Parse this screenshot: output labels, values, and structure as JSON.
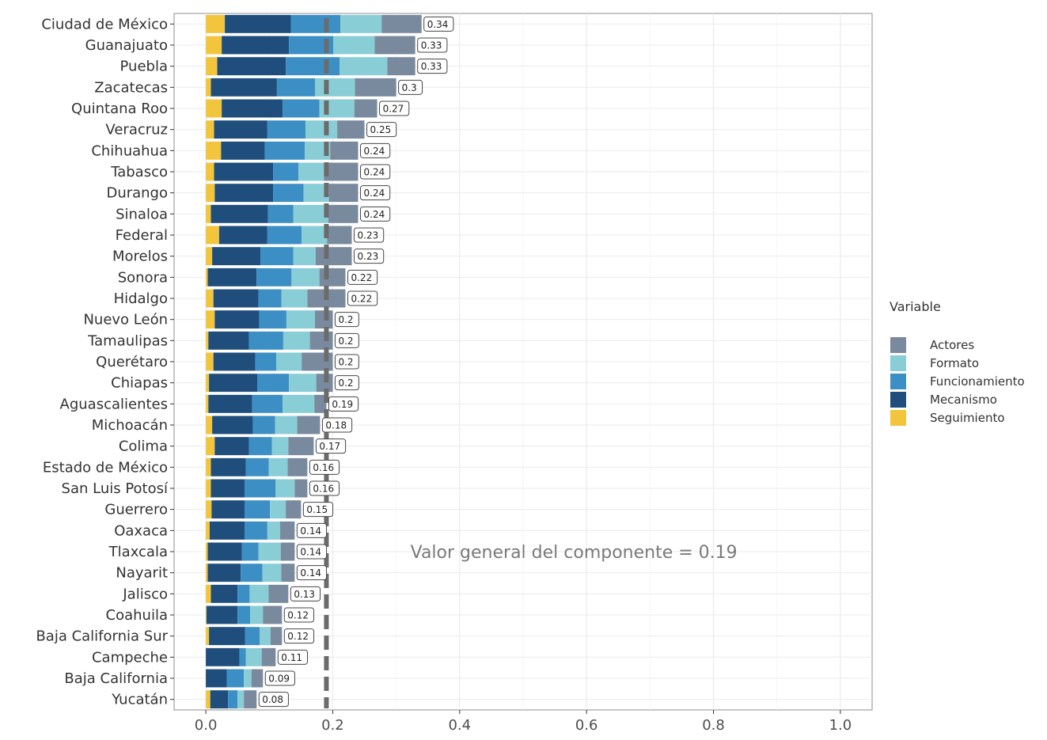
{
  "chart_data": {
    "type": "bar",
    "orientation": "horizontal",
    "stacked": true,
    "categories": [
      "Ciudad de México",
      "Guanajuato",
      "Puebla",
      "Zacatecas",
      "Quintana Roo",
      "Veracruz",
      "Chihuahua",
      "Tabasco",
      "Durango",
      "Sinaloa",
      "Federal",
      "Morelos",
      "Sonora",
      "Hidalgo",
      "Nuevo León",
      "Tamaulipas",
      "Querétaro",
      "Chiapas",
      "Aguascalientes",
      "Michoacán",
      "Colima",
      "Estado de México",
      "San Luis Potosí",
      "Guerrero",
      "Oaxaca",
      "Tlaxcala",
      "Nayarit",
      "Jalisco",
      "Coahuila",
      "Baja California Sur",
      "Campeche",
      "Baja California",
      "Yucatán"
    ],
    "series": [
      {
        "name": "Seguimiento",
        "color": "#F2C53D",
        "values": [
          0.03,
          0.025,
          0.018,
          0.008,
          0.025,
          0.013,
          0.024,
          0.013,
          0.014,
          0.008,
          0.021,
          0.01,
          0.003,
          0.012,
          0.014,
          0.004,
          0.012,
          0.005,
          0.004,
          0.01,
          0.014,
          0.008,
          0.008,
          0.009,
          0.006,
          0.003,
          0.003,
          0.008,
          0.001,
          0.005,
          0.0,
          0.0,
          0.007
        ]
      },
      {
        "name": "Mecanismo",
        "color": "#1F4E7D",
        "values": [
          0.104,
          0.106,
          0.108,
          0.104,
          0.096,
          0.084,
          0.069,
          0.093,
          0.092,
          0.09,
          0.076,
          0.076,
          0.077,
          0.071,
          0.07,
          0.064,
          0.066,
          0.076,
          0.069,
          0.064,
          0.054,
          0.055,
          0.053,
          0.052,
          0.055,
          0.054,
          0.052,
          0.042,
          0.049,
          0.057,
          0.053,
          0.033,
          0.028
        ]
      },
      {
        "name": "Funcionamiento",
        "color": "#3B8FC4",
        "values": [
          0.078,
          0.07,
          0.085,
          0.06,
          0.058,
          0.06,
          0.063,
          0.04,
          0.048,
          0.04,
          0.054,
          0.052,
          0.055,
          0.036,
          0.043,
          0.054,
          0.033,
          0.05,
          0.048,
          0.035,
          0.036,
          0.036,
          0.049,
          0.04,
          0.036,
          0.026,
          0.034,
          0.019,
          0.02,
          0.023,
          0.01,
          0.027,
          0.015
        ]
      },
      {
        "name": "Formato",
        "color": "#89CDD6",
        "values": [
          0.065,
          0.065,
          0.075,
          0.063,
          0.055,
          0.05,
          0.04,
          0.04,
          0.04,
          0.055,
          0.04,
          0.035,
          0.044,
          0.041,
          0.045,
          0.042,
          0.04,
          0.043,
          0.05,
          0.035,
          0.026,
          0.03,
          0.03,
          0.025,
          0.02,
          0.035,
          0.03,
          0.03,
          0.02,
          0.017,
          0.025,
          0.012,
          0.01
        ]
      },
      {
        "name": "Actores",
        "color": "#7A8A9E",
        "values": [
          0.063,
          0.064,
          0.044,
          0.065,
          0.036,
          0.043,
          0.044,
          0.054,
          0.046,
          0.047,
          0.039,
          0.057,
          0.041,
          0.06,
          0.028,
          0.036,
          0.049,
          0.026,
          0.019,
          0.036,
          0.04,
          0.031,
          0.02,
          0.024,
          0.023,
          0.022,
          0.021,
          0.031,
          0.03,
          0.018,
          0.022,
          0.018,
          0.02
        ]
      }
    ],
    "totals": [
      "0.34",
      "0.33",
      "0.33",
      "0.3",
      "0.27",
      "0.25",
      "0.24",
      "0.24",
      "0.24",
      "0.24",
      "0.23",
      "0.23",
      "0.22",
      "0.22",
      "0.2",
      "0.2",
      "0.2",
      "0.2",
      "0.19",
      "0.18",
      "0.17",
      "0.16",
      "0.16",
      "0.15",
      "0.14",
      "0.14",
      "0.14",
      "0.13",
      "0.12",
      "0.12",
      "0.11",
      "0.09",
      "0.08"
    ],
    "xlim": [
      -0.05,
      1.05
    ],
    "xticks": [
      0.0,
      0.2,
      0.4,
      0.6,
      0.8,
      1.0
    ],
    "xtick_labels": [
      "0.0",
      "0.2",
      "0.4",
      "0.6",
      "0.8",
      "1.0"
    ],
    "reference_line": {
      "value": 0.19,
      "color": "#6b6b6b"
    },
    "annotation": {
      "text": "Valor general del componente = 0.19",
      "x": 0.58,
      "row": "Tlaxcala"
    },
    "legend": {
      "title": "Variable",
      "placement": "right",
      "order": [
        "Actores",
        "Formato",
        "Funcionamiento",
        "Mecanismo",
        "Seguimiento"
      ]
    },
    "grid": true,
    "panel_background": "#ffffff",
    "grid_color": "#ebebeb"
  }
}
